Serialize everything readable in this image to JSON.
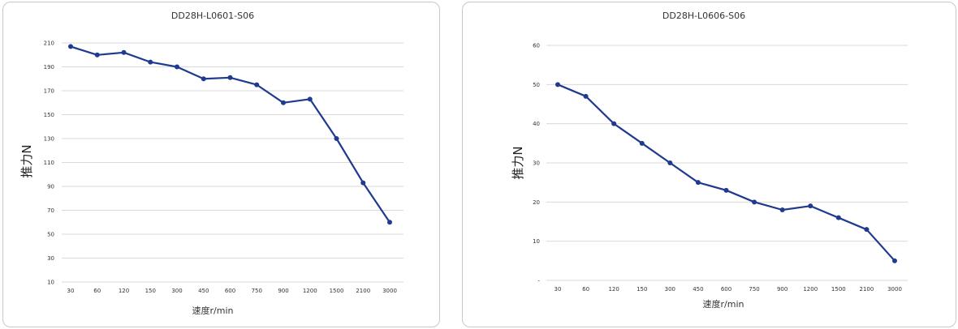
{
  "chart_data": [
    {
      "type": "line",
      "title": "DD28H-L0601-S06",
      "xlabel": "速度r/min",
      "ylabel": "推力N",
      "categories": [
        "30",
        "60",
        "120",
        "150",
        "300",
        "450",
        "600",
        "750",
        "900",
        "1200",
        "1500",
        "2100",
        "3000"
      ],
      "y_ticks": [
        "210",
        "190",
        "170",
        "150",
        "130",
        "110",
        "90",
        "70",
        "50",
        "30",
        "10"
      ],
      "ylim": [
        10,
        210
      ],
      "grid": true,
      "series": [
        {
          "values": [
            207,
            200,
            202,
            194,
            190,
            180,
            181,
            175,
            160,
            163,
            130,
            93,
            60
          ]
        }
      ],
      "color": "#1f3a8f"
    },
    {
      "type": "line",
      "title": "DD28H-L0606-S06",
      "xlabel": "速度r/min",
      "ylabel": "推力N",
      "categories": [
        "30",
        "60",
        "120",
        "150",
        "300",
        "450",
        "600",
        "750",
        "900",
        "1200",
        "1500",
        "2100",
        "3000"
      ],
      "y_ticks": [
        "60",
        "50",
        "40",
        "30",
        "20",
        "10",
        "-"
      ],
      "ylim": [
        0,
        60
      ],
      "grid": true,
      "series": [
        {
          "values": [
            50,
            47,
            40,
            35,
            30,
            25,
            23,
            20,
            18,
            19,
            16,
            13,
            5
          ]
        }
      ],
      "color": "#1f3a8f"
    }
  ]
}
